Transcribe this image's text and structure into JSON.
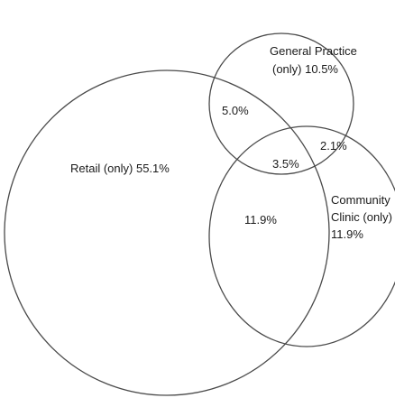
{
  "diagram": {
    "type": "venn",
    "sets": [
      {
        "id": "retail",
        "label": "Retail (only)",
        "only_value": "55.1%"
      },
      {
        "id": "general_practice",
        "label_line1": "General Practice",
        "label_line2": "(only)",
        "only_value": "10.5%"
      },
      {
        "id": "community_clinic",
        "label_line1": "Community",
        "label_line2": "Clinic (only)",
        "only_value": "11.9%"
      }
    ],
    "regions": {
      "retail_only": {
        "label": "Retail (only)  55.1%"
      },
      "gp_only": {
        "line1": "General Practice",
        "line2": "(only)  10.5%"
      },
      "cc_only": {
        "line1": "Community",
        "line2": "Clinic (only)",
        "line3": "11.9%"
      },
      "retail_gp": {
        "value": "5.0%"
      },
      "gp_cc": {
        "value": "2.1%"
      },
      "all_three": {
        "value": "3.5%"
      },
      "retail_cc": {
        "value": "11.9%"
      }
    }
  }
}
